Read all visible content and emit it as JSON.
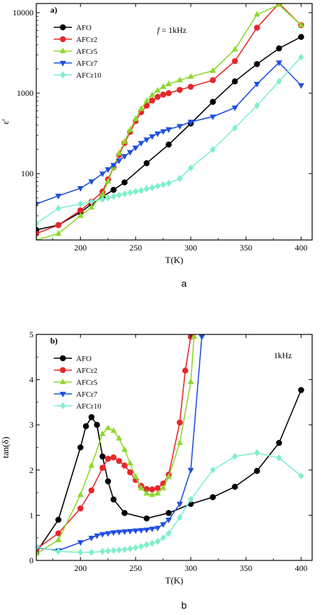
{
  "colors": {
    "AFO": "#000000",
    "AFCr2": "#e8262b",
    "AFCr5": "#8ed82f",
    "AFCr7": "#1f4fe0",
    "AFCr10": "#7ff0c8"
  },
  "chart_data": [
    {
      "type": "line",
      "panel_tag": "a)",
      "annotation": "f = 1kHz",
      "annotation_italic": "f",
      "annotation_rest": " = 1kHz",
      "xlabel": "T(K)",
      "ylabel": "ε'",
      "caption": "a",
      "xlim": [
        160,
        410
      ],
      "ylim": [
        15,
        13000
      ],
      "yscale": "log",
      "xticks": [
        200,
        250,
        300,
        350,
        400
      ],
      "yticks": [
        100,
        1000,
        10000
      ],
      "legend_position": "top-left",
      "series": [
        {
          "name": "AFO",
          "marker": "circle",
          "x": [
            160,
            180,
            200,
            210,
            220,
            230,
            240,
            260,
            280,
            300,
            320,
            340,
            360,
            380,
            400
          ],
          "y": [
            20,
            23,
            33,
            42,
            52,
            63,
            78,
            135,
            230,
            420,
            780,
            1400,
            2300,
            3600,
            5000
          ]
        },
        {
          "name": "AFCr2",
          "marker": "circle",
          "x": [
            160,
            180,
            200,
            210,
            220,
            225,
            230,
            235,
            240,
            245,
            250,
            255,
            260,
            265,
            270,
            275,
            280,
            290,
            300,
            320,
            340,
            360,
            380,
            400
          ],
          "y": [
            18,
            23,
            35,
            45,
            60,
            85,
            120,
            170,
            240,
            330,
            450,
            580,
            700,
            810,
            900,
            960,
            1000,
            1100,
            1200,
            1450,
            2500,
            6500,
            13000,
            7000
          ]
        },
        {
          "name": "AFCr5",
          "marker": "triangle-up",
          "x": [
            160,
            180,
            200,
            210,
            220,
            225,
            230,
            235,
            240,
            245,
            250,
            255,
            260,
            265,
            270,
            275,
            280,
            290,
            300,
            320,
            340,
            360,
            380,
            400
          ],
          "y": [
            15,
            18,
            30,
            38,
            55,
            80,
            120,
            180,
            250,
            350,
            480,
            640,
            800,
            950,
            1080,
            1200,
            1300,
            1450,
            1600,
            1900,
            3500,
            9500,
            12500,
            7000
          ]
        },
        {
          "name": "AFCr7",
          "marker": "triangle-down",
          "x": [
            160,
            180,
            200,
            210,
            220,
            225,
            230,
            235,
            240,
            245,
            250,
            255,
            260,
            265,
            270,
            275,
            280,
            290,
            300,
            320,
            340,
            360,
            380,
            400
          ],
          "y": [
            42,
            53,
            66,
            80,
            100,
            113,
            128,
            145,
            165,
            185,
            210,
            240,
            265,
            290,
            315,
            335,
            355,
            390,
            440,
            510,
            660,
            1300,
            2400,
            1250
          ]
        },
        {
          "name": "AFCr10",
          "marker": "diamond",
          "x": [
            160,
            180,
            200,
            210,
            220,
            225,
            230,
            235,
            240,
            245,
            250,
            255,
            260,
            265,
            270,
            275,
            280,
            290,
            300,
            320,
            340,
            360,
            380,
            400
          ],
          "y": [
            24,
            37,
            42,
            45,
            48,
            50,
            52,
            54,
            56,
            58,
            60,
            62,
            65,
            67,
            70,
            73,
            76,
            87,
            118,
            200,
            370,
            700,
            1400,
            2800
          ]
        }
      ]
    },
    {
      "type": "line",
      "panel_tag": "b)",
      "annotation": "1kHz",
      "xlabel": "T(K)",
      "ylabel": "tan(δ)",
      "caption": "b",
      "xlim": [
        160,
        410
      ],
      "ylim": [
        0,
        5
      ],
      "yscale": "linear",
      "xticks": [
        200,
        250,
        300,
        350,
        400
      ],
      "yticks": [
        0,
        1,
        2,
        3,
        4,
        5
      ],
      "legend_position": "top-left",
      "series": [
        {
          "name": "AFO",
          "marker": "circle",
          "x": [
            160,
            180,
            200,
            205,
            210,
            215,
            220,
            225,
            230,
            240,
            260,
            280,
            300,
            320,
            340,
            360,
            380,
            400
          ],
          "y": [
            0.18,
            0.9,
            2.5,
            2.97,
            3.17,
            3.0,
            2.3,
            1.75,
            1.35,
            1.05,
            0.93,
            1.05,
            1.25,
            1.4,
            1.63,
            1.98,
            2.6,
            3.77
          ]
        },
        {
          "name": "AFCr2",
          "marker": "circle",
          "x": [
            160,
            180,
            200,
            210,
            220,
            225,
            230,
            235,
            240,
            245,
            250,
            255,
            260,
            265,
            270,
            275,
            280,
            290,
            295,
            300
          ],
          "y": [
            0.25,
            0.6,
            1.15,
            1.55,
            2.05,
            2.25,
            2.28,
            2.2,
            2.1,
            1.95,
            1.78,
            1.65,
            1.58,
            1.57,
            1.6,
            1.7,
            1.9,
            3.05,
            4.2,
            4.95
          ]
        },
        {
          "name": "AFCr5",
          "marker": "triangle-up",
          "x": [
            160,
            180,
            200,
            210,
            220,
            225,
            230,
            235,
            240,
            245,
            250,
            255,
            260,
            265,
            270,
            275,
            280,
            290,
            300,
            303
          ],
          "y": [
            0.15,
            0.45,
            1.45,
            2.1,
            2.8,
            2.93,
            2.87,
            2.7,
            2.45,
            2.15,
            1.85,
            1.6,
            1.48,
            1.45,
            1.48,
            1.6,
            1.85,
            2.6,
            3.95,
            4.95
          ]
        },
        {
          "name": "AFCr7",
          "marker": "triangle-down",
          "x": [
            160,
            180,
            200,
            210,
            215,
            220,
            225,
            230,
            235,
            240,
            245,
            250,
            255,
            260,
            265,
            270,
            275,
            280,
            290,
            300,
            310
          ],
          "y": [
            0.28,
            0.22,
            0.4,
            0.5,
            0.55,
            0.58,
            0.6,
            0.62,
            0.63,
            0.64,
            0.65,
            0.66,
            0.67,
            0.68,
            0.7,
            0.72,
            0.8,
            0.9,
            1.25,
            2.0,
            4.95
          ]
        },
        {
          "name": "AFCr10",
          "marker": "diamond",
          "x": [
            160,
            180,
            200,
            210,
            220,
            225,
            230,
            235,
            240,
            245,
            250,
            255,
            260,
            265,
            270,
            275,
            280,
            290,
            300,
            320,
            340,
            360,
            380,
            400
          ],
          "y": [
            0.3,
            0.2,
            0.18,
            0.18,
            0.2,
            0.21,
            0.22,
            0.23,
            0.24,
            0.26,
            0.28,
            0.31,
            0.35,
            0.38,
            0.42,
            0.5,
            0.6,
            0.95,
            1.35,
            2.0,
            2.3,
            2.38,
            2.27,
            1.87
          ]
        }
      ]
    }
  ]
}
